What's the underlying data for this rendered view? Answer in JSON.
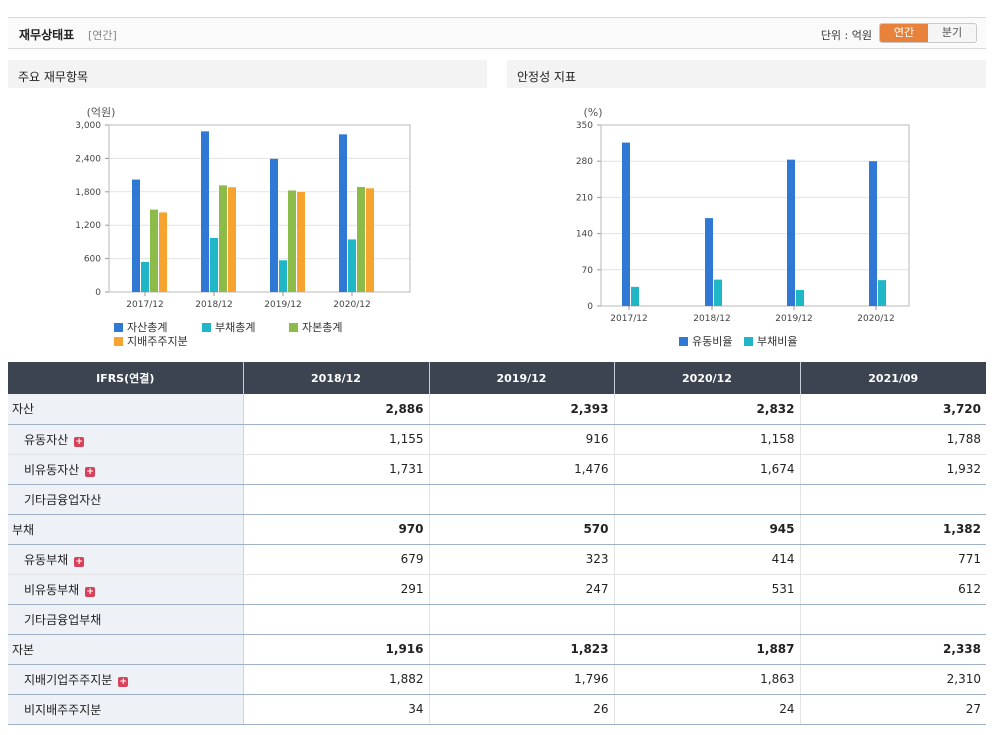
{
  "header": {
    "title": "재무상태표",
    "subtitle": "[연간]",
    "unit_label": "단위 : 억원",
    "toggle_annual": "연간",
    "toggle_quarter": "분기"
  },
  "panels": {
    "left_title": "주요 재무항목",
    "right_title": "안정성 지표"
  },
  "chart_data": [
    {
      "type": "bar",
      "ylabel": "(억원)",
      "ylim": [
        0,
        3000
      ],
      "yticks": [
        0,
        600,
        1200,
        1800,
        2400,
        3000
      ],
      "ytick_labels": [
        "0",
        "600",
        "1,200",
        "1,800",
        "2,400",
        "3,000"
      ],
      "categories": [
        "2017/12",
        "2018/12",
        "2019/12",
        "2020/12"
      ],
      "grid": true,
      "legend_position": "bottom",
      "series": [
        {
          "name": "자산총계",
          "color": "#2f78d4",
          "values": [
            2020,
            2886,
            2393,
            2832
          ]
        },
        {
          "name": "부채총계",
          "color": "#1fb6c8",
          "values": [
            540,
            970,
            570,
            945
          ]
        },
        {
          "name": "자본총계",
          "color": "#8dbb4a",
          "values": [
            1480,
            1916,
            1823,
            1887
          ]
        },
        {
          "name": "지배주주지분",
          "color": "#f7a32f",
          "values": [
            1430,
            1882,
            1796,
            1863
          ]
        }
      ]
    },
    {
      "type": "bar",
      "ylabel": "(%)",
      "ylim": [
        0,
        350
      ],
      "yticks": [
        0,
        70,
        140,
        210,
        280,
        350
      ],
      "ytick_labels": [
        "0",
        "70",
        "140",
        "210",
        "280",
        "350"
      ],
      "categories": [
        "2017/12",
        "2018/12",
        "2019/12",
        "2020/12"
      ],
      "grid": true,
      "legend_position": "bottom",
      "series": [
        {
          "name": "유동비율",
          "color": "#2f78d4",
          "values": [
            316,
            170,
            283,
            280
          ]
        },
        {
          "name": "부채비율",
          "color": "#1fb6c8",
          "values": [
            37,
            51,
            31,
            50
          ]
        }
      ]
    }
  ],
  "table": {
    "corner": "IFRS(연결)",
    "columns": [
      "2018/12",
      "2019/12",
      "2020/12",
      "2021/09"
    ],
    "rows": [
      {
        "label": "자산",
        "values": [
          "2,886",
          "2,393",
          "2,832",
          "3,720"
        ]
      },
      {
        "label": "유동자산",
        "values": [
          "1,155",
          "916",
          "1,158",
          "1,788"
        ]
      },
      {
        "label": "비유동자산",
        "values": [
          "1,731",
          "1,476",
          "1,674",
          "1,932"
        ]
      },
      {
        "label": "기타금융업자산",
        "values": [
          "",
          "",
          "",
          ""
        ]
      },
      {
        "label": "부채",
        "values": [
          "970",
          "570",
          "945",
          "1,382"
        ]
      },
      {
        "label": "유동부채",
        "values": [
          "679",
          "323",
          "414",
          "771"
        ]
      },
      {
        "label": "비유동부채",
        "values": [
          "291",
          "247",
          "531",
          "612"
        ]
      },
      {
        "label": "기타금융업부채",
        "values": [
          "",
          "",
          "",
          ""
        ]
      },
      {
        "label": "자본",
        "values": [
          "1,916",
          "1,823",
          "1,887",
          "2,338"
        ]
      },
      {
        "label": "지배기업주주지분",
        "values": [
          "1,882",
          "1,796",
          "1,863",
          "2,310"
        ]
      },
      {
        "label": "비지배주주지분",
        "values": [
          "34",
          "26",
          "24",
          "27"
        ]
      }
    ]
  }
}
